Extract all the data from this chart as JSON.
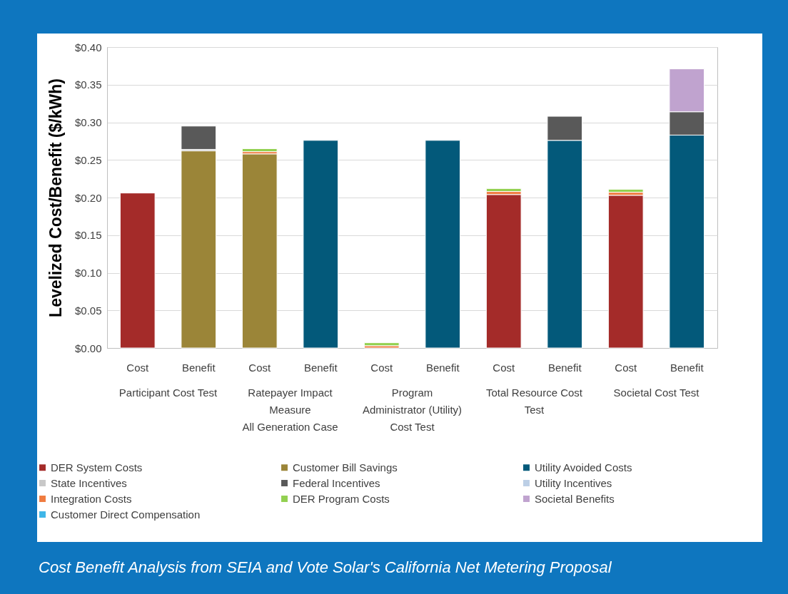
{
  "chart_data": {
    "type": "bar",
    "stacked": true,
    "ylabel": "Levelized Cost/Benefit ($/kWh)",
    "categories": [
      "Cost",
      "Benefit",
      "Cost",
      "Benefit",
      "Cost",
      "Benefit",
      "Cost",
      "Benefit",
      "Cost",
      "Benefit"
    ],
    "series": [
      {
        "name": "DER System Costs",
        "color": "#a42b29",
        "values": [
          0.206,
          null,
          null,
          null,
          null,
          null,
          0.204,
          null,
          0.203,
          null
        ]
      },
      {
        "name": "Customer Bill Savings",
        "color": "#9b8538",
        "values": [
          null,
          0.262,
          0.258,
          null,
          null,
          null,
          null,
          null,
          null,
          null
        ]
      },
      {
        "name": "Utility Avoided Costs",
        "color": "#03597a",
        "values": [
          null,
          null,
          null,
          0.276,
          null,
          0.276,
          null,
          0.276,
          null,
          0.283
        ]
      },
      {
        "name": "State Incentives",
        "color": "#c8c8c8",
        "values": [
          null,
          0.002,
          null,
          null,
          null,
          null,
          null,
          null,
          null,
          null
        ]
      },
      {
        "name": "Federal Incentives",
        "color": "#595959",
        "values": [
          null,
          0.031,
          null,
          null,
          null,
          null,
          null,
          0.032,
          null,
          0.031
        ]
      },
      {
        "name": "Utility Incentives",
        "color": "#bccfe6",
        "values": [
          null,
          null,
          null,
          null,
          null,
          null,
          null,
          null,
          null,
          null
        ]
      },
      {
        "name": "Integration Costs",
        "color": "#f07b3f",
        "values": [
          null,
          null,
          0.003,
          null,
          0.003,
          null,
          0.004,
          null,
          0.004,
          null
        ]
      },
      {
        "name": "DER Program Costs",
        "color": "#92d050",
        "values": [
          null,
          null,
          0.004,
          null,
          0.004,
          null,
          0.004,
          null,
          0.004,
          null
        ]
      },
      {
        "name": "Societal Benefits",
        "color": "#c0a3cf",
        "values": [
          null,
          null,
          null,
          null,
          null,
          null,
          null,
          null,
          null,
          0.057
        ]
      },
      {
        "name": "Customer Direct Compensation",
        "color": "#3fb6e8",
        "values": [
          null,
          null,
          null,
          null,
          null,
          null,
          null,
          null,
          null,
          null
        ]
      }
    ],
    "ylim": [
      0,
      0.4
    ],
    "yticks": [
      {
        "value": 0,
        "label": "$0.00"
      },
      {
        "value": 0.05,
        "label": "$0.05"
      },
      {
        "value": 0.1,
        "label": "$0.10"
      },
      {
        "value": 0.15,
        "label": "$0.15"
      },
      {
        "value": 0.2,
        "label": "$0.20"
      },
      {
        "value": 0.25,
        "label": "$0.25"
      },
      {
        "value": 0.3,
        "label": "$0.30"
      },
      {
        "value": 0.35,
        "label": "$0.35"
      },
      {
        "value": 0.4,
        "label": "$0.40"
      }
    ],
    "grid": "y",
    "legend": "bottom",
    "annotations": [
      "Participant Cost Test",
      "Ratepayer Impact\nMeasure\nAll Generation Case",
      "Program\nAdministrator (Utility)\nCost Test",
      "Total Resource Cost\nTest",
      "Societal Cost Test",
      "Cost Benefit Analysis from SEIA and Vote Solar's California Net Metering Proposal"
    ]
  }
}
